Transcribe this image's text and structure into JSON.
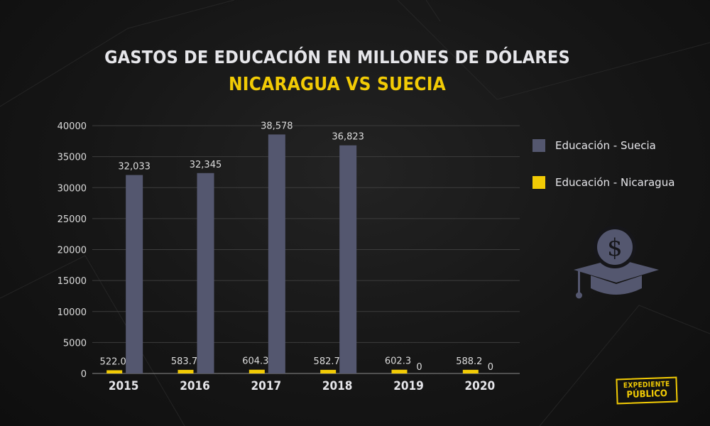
{
  "header": {
    "title": "GASTOS DE EDUCACIÓN EN MILLONES DE DÓLARES",
    "subtitle": "NICARAGUA VS SUECIA"
  },
  "chart_data": {
    "type": "bar",
    "categories": [
      "2015",
      "2016",
      "2017",
      "2018",
      "2019",
      "2020"
    ],
    "series": [
      {
        "name": "Educación - Suecia",
        "color": "#54576f",
        "values": [
          32033,
          32345,
          38578,
          36823,
          0,
          0
        ],
        "labels": [
          "32,033",
          "32,345",
          "38,578",
          "36,823",
          "0",
          "0"
        ]
      },
      {
        "name": "Educación - Nicaragua",
        "color": "#f2cb05",
        "values": [
          522.0,
          583.7,
          604.3,
          582.7,
          602.3,
          588.2
        ],
        "labels": [
          "522.0",
          "583.7",
          "604.3",
          "582.7",
          "602.3",
          "588.2"
        ]
      }
    ],
    "ylim": [
      0,
      40000
    ],
    "yticks": [
      "0",
      "5000",
      "10000",
      "15000",
      "20000",
      "25000",
      "30000",
      "35000",
      "40000"
    ],
    "grid": true,
    "legend_position": "right"
  },
  "decor": {
    "icon": "graduation-cap-dollar-icon",
    "logo_line1": "EXPEDIENTE",
    "logo_line2": "PÚBLICO"
  }
}
